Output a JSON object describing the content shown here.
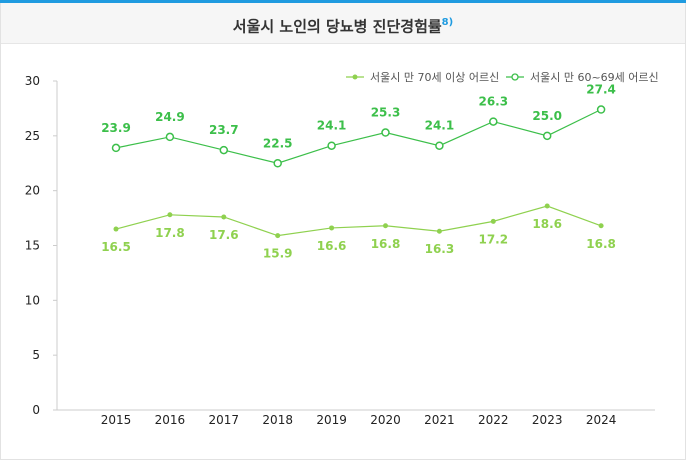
{
  "title": "서울시 노인의 당뇨병 진단경험률",
  "footnote": "8)",
  "chart_data": {
    "type": "line",
    "categories": [
      "2015",
      "2016",
      "2017",
      "2018",
      "2019",
      "2020",
      "2021",
      "2022",
      "2023",
      "2024"
    ],
    "ylim": [
      0,
      30
    ],
    "yticks": [
      "0",
      "5",
      "10",
      "15",
      "20",
      "25",
      "30"
    ],
    "legend_position": "top-right",
    "series": [
      {
        "name": "서울시 만 70세 이상 어르신",
        "marker": "filled",
        "color": "#8fd14f",
        "values": [
          16.5,
          17.8,
          17.6,
          15.9,
          16.6,
          16.8,
          16.3,
          17.2,
          18.6,
          16.8
        ]
      },
      {
        "name": "서울시 만 60~69세 어르신",
        "marker": "open",
        "color": "#3cbf4a",
        "values": [
          23.9,
          24.9,
          23.7,
          22.5,
          24.1,
          25.3,
          24.1,
          26.3,
          25.0,
          27.4
        ]
      }
    ]
  }
}
